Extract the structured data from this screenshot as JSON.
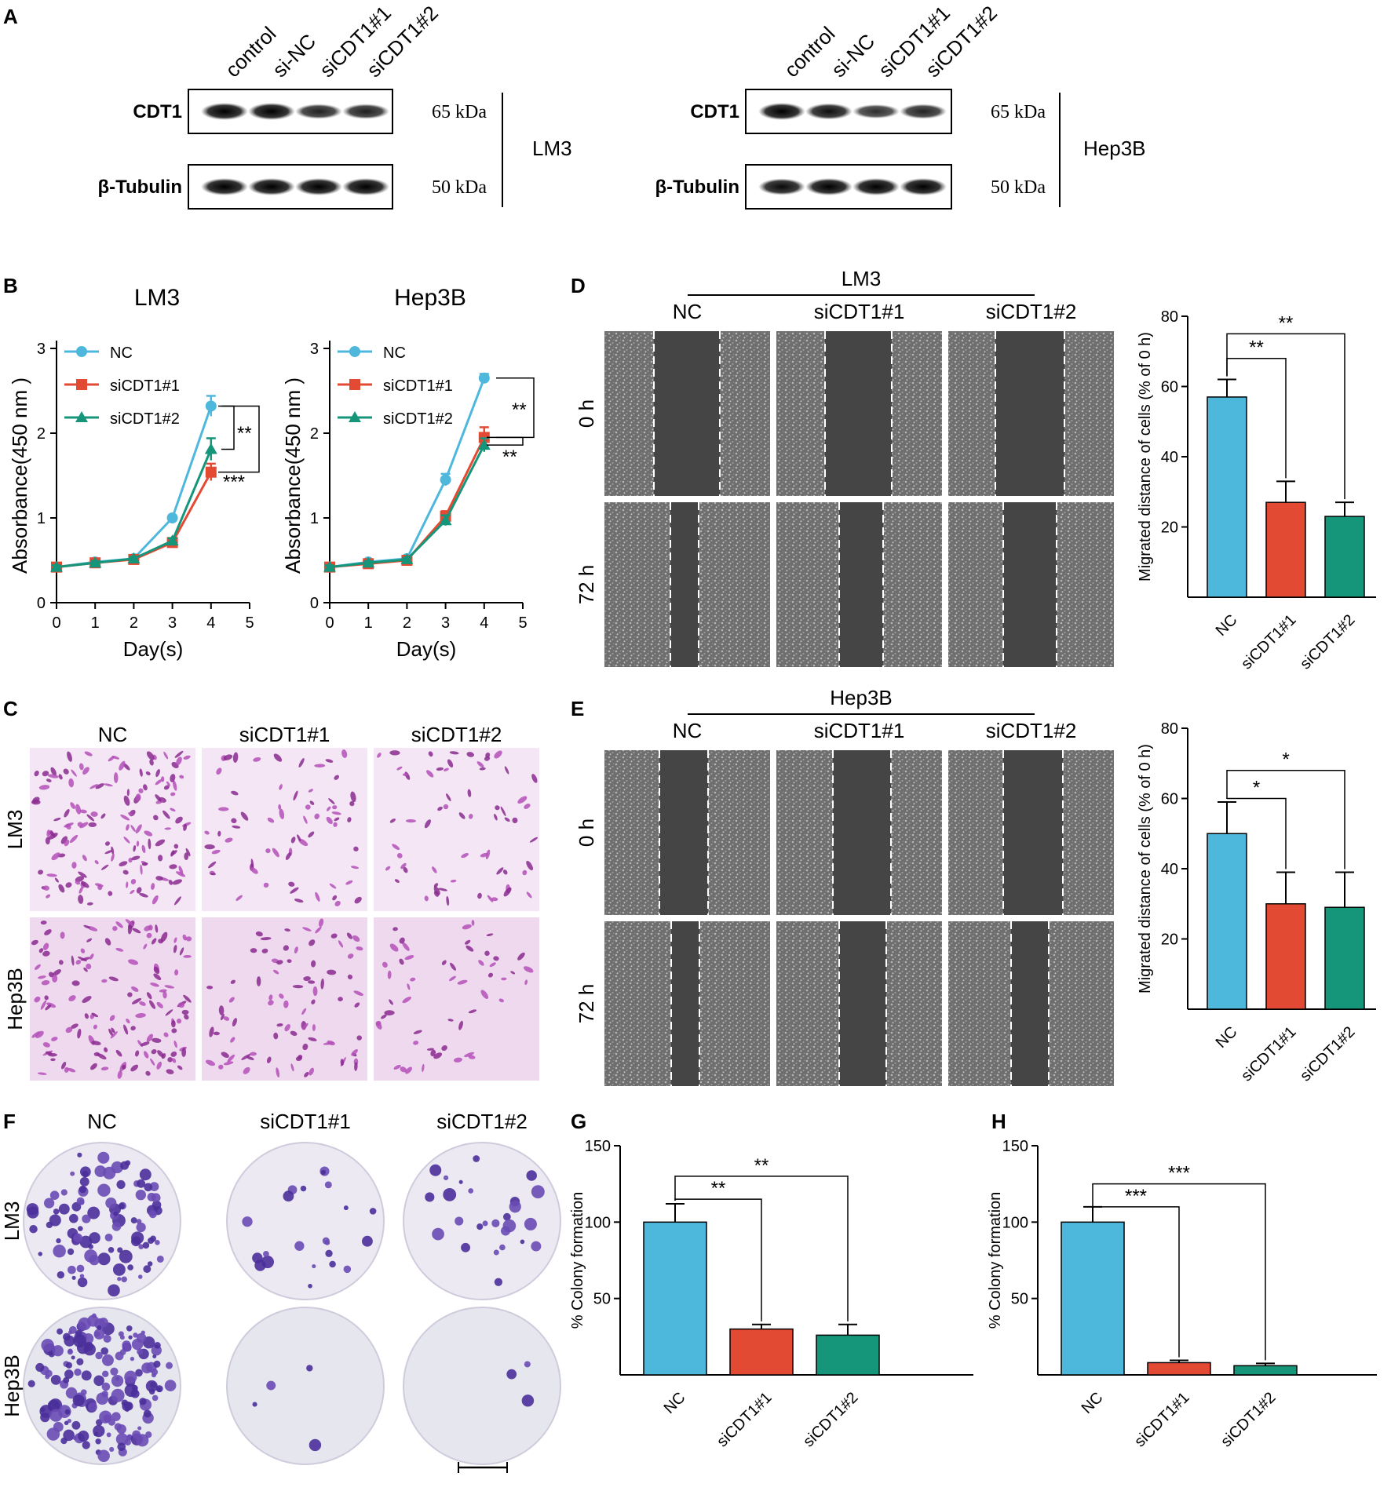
{
  "panels": {
    "A": {
      "letter": "A",
      "blots": [
        {
          "cell_line": "LM3",
          "lanes": [
            "control",
            "si-NC",
            "siCDT1#1",
            "siCDT1#2"
          ],
          "bands": [
            {
              "protein": "CDT1",
              "size": "65 kDa",
              "intensity": [
                1.0,
                1.0,
                0.72,
                0.74
              ]
            },
            {
              "protein": "β-Tubulin",
              "size": "50 kDa",
              "intensity": [
                1.0,
                1.0,
                1.0,
                1.0
              ]
            }
          ]
        },
        {
          "cell_line": "Hep3B",
          "lanes": [
            "control",
            "si-NC",
            "siCDT1#1",
            "siCDT1#2"
          ],
          "bands": [
            {
              "protein": "CDT1",
              "size": "65 kDa",
              "intensity": [
                1.0,
                0.88,
                0.6,
                0.7
              ]
            },
            {
              "protein": "β-Tubulin",
              "size": "50 kDa",
              "intensity": [
                0.92,
                1.0,
                1.0,
                1.0
              ]
            }
          ]
        }
      ]
    },
    "B": {
      "letter": "B"
    },
    "C": {
      "letter": "C",
      "columns": [
        "NC",
        "siCDT1#1",
        "siCDT1#2"
      ],
      "rows": [
        "LM3",
        "Hep3B"
      ],
      "cell_density": [
        [
          1.0,
          0.45,
          0.42
        ],
        [
          0.95,
          0.55,
          0.35
        ]
      ]
    },
    "D": {
      "letter": "D",
      "cell_line": "LM3",
      "columns": [
        "NC",
        "siCDT1#1",
        "siCDT1#2"
      ],
      "rows": [
        "0 h",
        "72 h"
      ]
    },
    "E": {
      "letter": "E",
      "cell_line": "Hep3B",
      "columns": [
        "NC",
        "siCDT1#1",
        "siCDT1#2"
      ],
      "rows": [
        "0 h",
        "72 h"
      ]
    },
    "F": {
      "letter": "F",
      "columns": [
        "NC",
        "siCDT1#1",
        "siCDT1#2"
      ],
      "rows": [
        "LM3",
        "Hep3B"
      ],
      "colony_counts": [
        [
          95,
          22,
          26
        ],
        [
          160,
          4,
          3
        ]
      ]
    },
    "G": {
      "letter": "G"
    },
    "H": {
      "letter": "H"
    }
  },
  "chart_data": [
    {
      "id": "B-LM3",
      "type": "line",
      "title": "LM3",
      "xlabel": "Day(s)",
      "ylabel": "Absorbance(450 nm )",
      "xlim": [
        0,
        5
      ],
      "ylim": [
        0,
        3
      ],
      "xticks": [
        "0",
        "1",
        "2",
        "3",
        "4",
        "5"
      ],
      "yticks": [
        "0",
        "1",
        "2",
        "3"
      ],
      "x": [
        0,
        1,
        2,
        3,
        4
      ],
      "series": [
        {
          "name": "NC",
          "color": "#4db8dc",
          "marker": "circle",
          "values": [
            0.42,
            0.48,
            0.52,
            1.0,
            2.32
          ],
          "err": [
            0.02,
            0.02,
            0.02,
            0.03,
            0.12
          ]
        },
        {
          "name": "siCDT1#1",
          "color": "#e34a33",
          "marker": "square",
          "values": [
            0.42,
            0.47,
            0.51,
            0.71,
            1.54
          ],
          "err": [
            0.02,
            0.02,
            0.02,
            0.03,
            0.1
          ]
        },
        {
          "name": "siCDT1#2",
          "color": "#15957a",
          "marker": "triangle",
          "values": [
            0.42,
            0.47,
            0.52,
            0.73,
            1.81
          ],
          "err": [
            0.02,
            0.02,
            0.02,
            0.03,
            0.13
          ]
        }
      ],
      "significance": [
        {
          "label": "**",
          "from": "NC",
          "to": "siCDT1#2"
        },
        {
          "label": "***",
          "from": "NC",
          "to": "siCDT1#1"
        }
      ]
    },
    {
      "id": "B-Hep3B",
      "type": "line",
      "title": "Hep3B",
      "xlabel": "Day(s)",
      "ylabel": "Absorbance(450 nm )",
      "xlim": [
        0,
        5
      ],
      "ylim": [
        0,
        3
      ],
      "xticks": [
        "0",
        "1",
        "2",
        "3",
        "4",
        "5"
      ],
      "yticks": [
        "0",
        "1",
        "2",
        "3"
      ],
      "x": [
        0,
        1,
        2,
        3,
        4
      ],
      "series": [
        {
          "name": "NC",
          "color": "#4db8dc",
          "marker": "circle",
          "values": [
            0.42,
            0.48,
            0.52,
            1.45,
            2.65
          ],
          "err": [
            0.02,
            0.02,
            0.02,
            0.07,
            0.05
          ]
        },
        {
          "name": "siCDT1#1",
          "color": "#e34a33",
          "marker": "square",
          "values": [
            0.42,
            0.46,
            0.5,
            1.02,
            1.95
          ],
          "err": [
            0.02,
            0.02,
            0.02,
            0.06,
            0.12
          ]
        },
        {
          "name": "siCDT1#2",
          "color": "#15957a",
          "marker": "triangle",
          "values": [
            0.42,
            0.47,
            0.51,
            0.97,
            1.86
          ],
          "err": [
            0.02,
            0.02,
            0.02,
            0.06,
            0.08
          ]
        }
      ],
      "significance": [
        {
          "label": "**",
          "from": "NC",
          "to": "siCDT1#1"
        },
        {
          "label": "**",
          "from": "NC",
          "to": "siCDT1#2"
        }
      ]
    },
    {
      "id": "D-bar",
      "type": "bar",
      "ylabel": "Migrated distance of cells (% of 0 h)",
      "ylim": [
        0,
        80
      ],
      "yticks": [
        "20",
        "40",
        "60",
        "80"
      ],
      "categories": [
        "NC",
        "siCDT1#1",
        "siCDT1#2"
      ],
      "values": [
        57,
        27,
        23
      ],
      "err": [
        5,
        6,
        4
      ],
      "colors": [
        "#4db8dc",
        "#e34a33",
        "#15957a"
      ],
      "significance": [
        {
          "label": "**",
          "from": "NC",
          "to": "siCDT1#1"
        },
        {
          "label": "**",
          "from": "NC",
          "to": "siCDT1#2"
        }
      ]
    },
    {
      "id": "E-bar",
      "type": "bar",
      "ylabel": "Migrated distance of cells (% of 0 h)",
      "ylim": [
        0,
        80
      ],
      "yticks": [
        "20",
        "40",
        "60",
        "80"
      ],
      "categories": [
        "NC",
        "siCDT1#1",
        "siCDT1#2"
      ],
      "values": [
        50,
        30,
        29
      ],
      "err": [
        9,
        9,
        10
      ],
      "colors": [
        "#4db8dc",
        "#e34a33",
        "#15957a"
      ],
      "significance": [
        {
          "label": "*",
          "from": "NC",
          "to": "siCDT1#1"
        },
        {
          "label": "*",
          "from": "NC",
          "to": "siCDT1#2"
        }
      ]
    },
    {
      "id": "G-bar",
      "type": "bar",
      "ylabel": "% Colony formation",
      "ylim": [
        0,
        150
      ],
      "yticks": [
        "50",
        "100",
        "150"
      ],
      "categories": [
        "NC",
        "siCDT1#1",
        "siCDT1#2"
      ],
      "values": [
        100,
        30,
        26
      ],
      "err": [
        12,
        3,
        7
      ],
      "colors": [
        "#4db8dc",
        "#e34a33",
        "#15957a"
      ],
      "significance": [
        {
          "label": "**",
          "from": "NC",
          "to": "siCDT1#1"
        },
        {
          "label": "**",
          "from": "NC",
          "to": "siCDT1#2"
        }
      ]
    },
    {
      "id": "H-bar",
      "type": "bar",
      "ylabel": "% Colony formation",
      "ylim": [
        0,
        150
      ],
      "yticks": [
        "50",
        "100",
        "150"
      ],
      "categories": [
        "NC",
        "siCDT1#1",
        "siCDT1#2"
      ],
      "values": [
        100,
        8,
        6
      ],
      "err": [
        10,
        1.5,
        1.5
      ],
      "colors": [
        "#4db8dc",
        "#e34a33",
        "#15957a"
      ],
      "significance": [
        {
          "label": "***",
          "from": "NC",
          "to": "siCDT1#1"
        },
        {
          "label": "***",
          "from": "NC",
          "to": "siCDT1#2"
        }
      ]
    }
  ]
}
